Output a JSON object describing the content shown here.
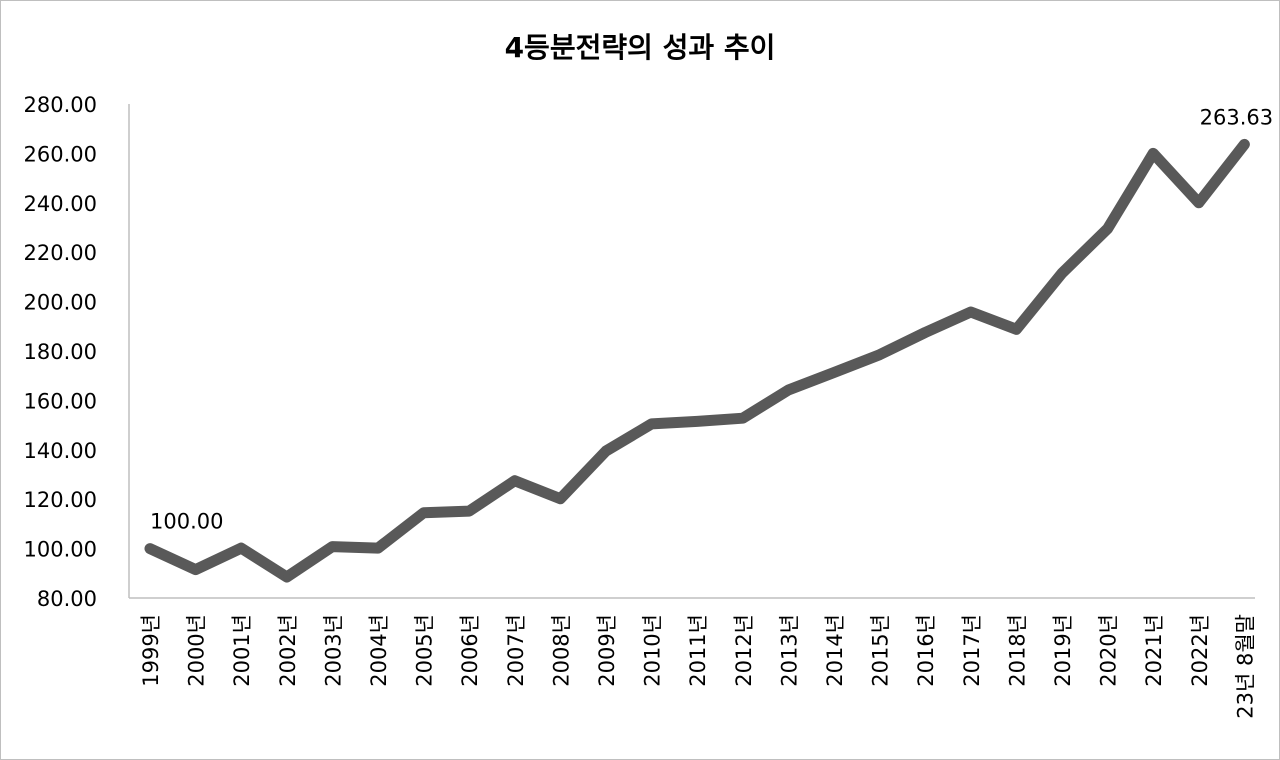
{
  "chart_data": {
    "type": "line",
    "title": "4등분전략의 성과 추이",
    "categories": [
      "1999년",
      "2000년",
      "2001년",
      "2002년",
      "2003년",
      "2004년",
      "2005년",
      "2006년",
      "2007년",
      "2008년",
      "2009년",
      "2010년",
      "2011년",
      "2012년",
      "2013년",
      "2014년",
      "2015년",
      "2016년",
      "2017년",
      "2018년",
      "2019년",
      "2020년",
      "2021년",
      "2022년",
      "23년 8월말"
    ],
    "series": [
      {
        "values": [
          100.0,
          91.5,
          100.2,
          88.5,
          100.8,
          100.2,
          114.5,
          115.2,
          127.5,
          120.2,
          139.5,
          150.5,
          151.5,
          152.8,
          164.2,
          171.3,
          178.5,
          187.5,
          195.8,
          188.8,
          211.5,
          229.5,
          260.0,
          240.0,
          263.63
        ],
        "color": "#595959"
      }
    ],
    "ylim": [
      80,
      280
    ],
    "yticks": [
      "80.00",
      "100.00",
      "120.00",
      "140.00",
      "160.00",
      "180.00",
      "200.00",
      "220.00",
      "240.00",
      "260.00",
      "280.00"
    ],
    "data_labels": [
      {
        "index": 0,
        "text": "100.00"
      },
      {
        "index": 24,
        "text": "263.63"
      }
    ],
    "grid": false,
    "legend": "none"
  }
}
